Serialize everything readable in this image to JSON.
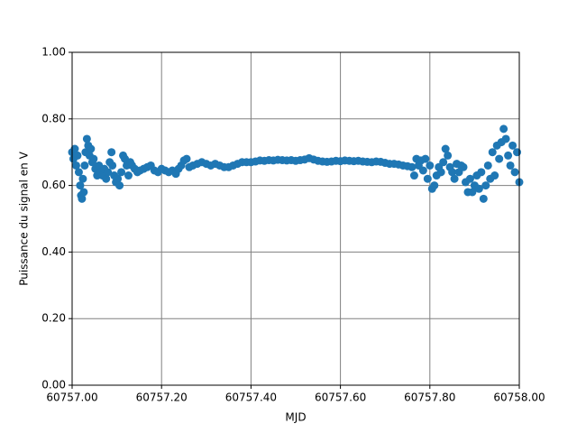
{
  "chart_data": {
    "type": "scatter",
    "xlabel": "MJD",
    "ylabel": "Puissance du signal en V",
    "color": "#1f77b4",
    "grid": true,
    "grid_color": "#808080",
    "xlim": [
      60757.0,
      60758.0
    ],
    "xticks": [
      {
        "value": 60757.0,
        "label": "60757.00"
      },
      {
        "value": 60757.2,
        "label": "60757.20"
      },
      {
        "value": 60757.4,
        "label": "60757.40"
      },
      {
        "value": 60757.6,
        "label": "60757.60"
      },
      {
        "value": 60757.8,
        "label": "60757.80"
      },
      {
        "value": 60758.0,
        "label": "60758.00"
      }
    ],
    "ylim": [
      0,
      1
    ],
    "yticks": [
      {
        "value": 0,
        "label": "0.00"
      },
      {
        "value": 0.2,
        "label": "0.20"
      },
      {
        "value": 0.4,
        "label": "0.40"
      },
      {
        "value": 0.6,
        "label": "0.60"
      },
      {
        "value": 0.8,
        "label": "0.80"
      },
      {
        "value": 1,
        "label": "1.00"
      }
    ],
    "x": [
      60757.0,
      60757.003,
      60757.006,
      60757.009,
      60757.012,
      60757.015,
      60757.018,
      60757.02,
      60757.022,
      60757.024,
      60757.026,
      60757.028,
      60757.03,
      60757.033,
      60757.036,
      60757.039,
      60757.042,
      60757.045,
      60757.048,
      60757.052,
      60757.056,
      60757.06,
      60757.064,
      60757.068,
      60757.072,
      60757.076,
      60757.08,
      60757.084,
      60757.088,
      60757.09,
      60757.094,
      60757.098,
      60757.102,
      60757.106,
      60757.11,
      60757.114,
      60757.118,
      60757.122,
      60757.126,
      60757.13,
      60757.134,
      60757.14,
      60757.146,
      60757.152,
      60757.16,
      60757.168,
      60757.176,
      60757.184,
      60757.192,
      60757.2,
      60757.208,
      60757.216,
      60757.224,
      60757.232,
      60757.238,
      60757.244,
      60757.25,
      60757.256,
      60757.262,
      60757.27,
      60757.28,
      60757.29,
      60757.3,
      60757.31,
      60757.32,
      60757.33,
      60757.34,
      60757.35,
      60757.36,
      60757.37,
      60757.38,
      60757.39,
      60757.4,
      60757.41,
      60757.42,
      60757.43,
      60757.44,
      60757.45,
      60757.46,
      60757.47,
      60757.48,
      60757.49,
      60757.5,
      60757.51,
      60757.52,
      60757.53,
      60757.54,
      60757.55,
      60757.56,
      60757.57,
      60757.58,
      60757.59,
      60757.6,
      60757.61,
      60757.62,
      60757.63,
      60757.64,
      60757.65,
      60757.66,
      60757.67,
      60757.68,
      60757.69,
      60757.7,
      60757.71,
      60757.72,
      60757.73,
      60757.74,
      60757.75,
      60757.76,
      60757.765,
      60757.77,
      60757.775,
      60757.78,
      60757.785,
      60757.79,
      60757.795,
      60757.8,
      60757.805,
      60757.81,
      60757.815,
      60757.82,
      60757.825,
      60757.83,
      60757.835,
      60757.84,
      60757.845,
      60757.85,
      60757.855,
      60757.86,
      60757.865,
      60757.87,
      60757.875,
      60757.88,
      60757.885,
      60757.89,
      60757.895,
      60757.9,
      60757.905,
      60757.91,
      60757.915,
      60757.92,
      60757.925,
      60757.93,
      60757.935,
      60757.94,
      60757.945,
      60757.95,
      60757.955,
      60757.96,
      60757.965,
      60757.97,
      60757.975,
      60757.98,
      60757.985,
      60757.99,
      60757.995,
      60758.0
    ],
    "values": [
      0.7,
      0.68,
      0.71,
      0.66,
      0.69,
      0.64,
      0.6,
      0.57,
      0.56,
      0.62,
      0.58,
      0.66,
      0.7,
      0.74,
      0.72,
      0.69,
      0.71,
      0.67,
      0.68,
      0.65,
      0.63,
      0.66,
      0.64,
      0.63,
      0.65,
      0.62,
      0.64,
      0.67,
      0.7,
      0.66,
      0.63,
      0.61,
      0.62,
      0.6,
      0.64,
      0.69,
      0.68,
      0.66,
      0.63,
      0.67,
      0.66,
      0.65,
      0.64,
      0.645,
      0.65,
      0.655,
      0.66,
      0.645,
      0.64,
      0.65,
      0.645,
      0.64,
      0.645,
      0.635,
      0.65,
      0.66,
      0.675,
      0.68,
      0.655,
      0.66,
      0.665,
      0.67,
      0.665,
      0.66,
      0.665,
      0.66,
      0.655,
      0.655,
      0.66,
      0.665,
      0.67,
      0.67,
      0.67,
      0.672,
      0.675,
      0.674,
      0.676,
      0.675,
      0.677,
      0.676,
      0.675,
      0.676,
      0.674,
      0.676,
      0.678,
      0.682,
      0.678,
      0.674,
      0.672,
      0.671,
      0.672,
      0.674,
      0.673,
      0.675,
      0.674,
      0.673,
      0.674,
      0.672,
      0.671,
      0.67,
      0.672,
      0.671,
      0.668,
      0.665,
      0.665,
      0.663,
      0.66,
      0.658,
      0.655,
      0.63,
      0.68,
      0.66,
      0.675,
      0.645,
      0.68,
      0.62,
      0.66,
      0.59,
      0.6,
      0.63,
      0.655,
      0.64,
      0.67,
      0.71,
      0.69,
      0.655,
      0.64,
      0.62,
      0.665,
      0.64,
      0.66,
      0.655,
      0.61,
      0.58,
      0.62,
      0.58,
      0.6,
      0.63,
      0.59,
      0.64,
      0.56,
      0.6,
      0.66,
      0.62,
      0.7,
      0.63,
      0.72,
      0.68,
      0.73,
      0.77,
      0.74,
      0.69,
      0.66,
      0.72,
      0.64,
      0.7,
      0.61
    ]
  }
}
